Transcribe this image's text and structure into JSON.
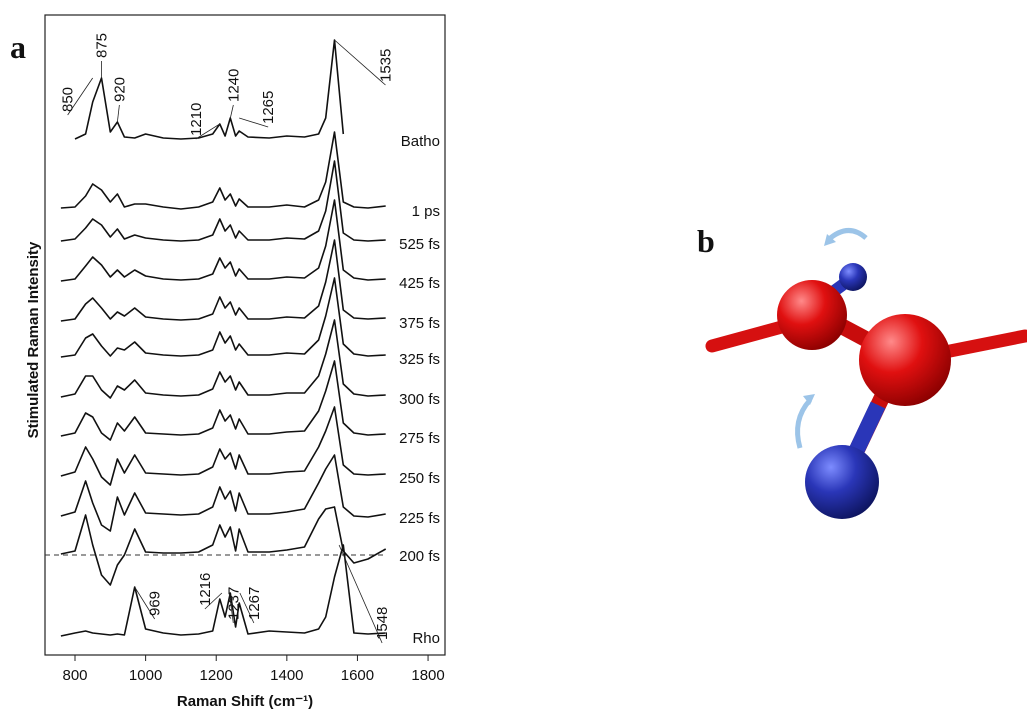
{
  "chart_data": {
    "type": "line",
    "panel_label": "a",
    "xlabel": "Raman Shift (cm⁻¹)",
    "ylabel": "Stimulated Raman Intensity",
    "xlim": [
      715,
      1848
    ],
    "xticks": [
      800,
      1000,
      1200,
      1400,
      1600,
      1800
    ],
    "color": "#111111",
    "x": [
      760,
      800,
      830,
      850,
      875,
      900,
      920,
      940,
      969,
      1000,
      1050,
      1100,
      1150,
      1190,
      1210,
      1225,
      1240,
      1255,
      1265,
      1290,
      1350,
      1400,
      1450,
      1490,
      1510,
      1535,
      1560,
      1590,
      1630,
      1680
    ],
    "series": [
      {
        "name": "Batho",
        "values": [
          null,
          1,
          6,
          38,
          62,
          8,
          18,
          3,
          2,
          6,
          2,
          1,
          2,
          6,
          16,
          4,
          22,
          4,
          9,
          3,
          2,
          4,
          3,
          6,
          22,
          100,
          6,
          null,
          null,
          null
        ],
        "peak_labels": [
          850,
          875,
          920,
          1210,
          1240,
          1265,
          1535
        ]
      },
      {
        "name": "1 ps",
        "values": [
          2,
          3,
          14,
          26,
          20,
          8,
          16,
          3,
          6,
          6,
          3,
          1,
          3,
          8,
          22,
          10,
          16,
          4,
          11,
          3,
          3,
          5,
          3,
          10,
          28,
          78,
          8,
          3,
          2,
          4
        ]
      },
      {
        "name": "525 fs",
        "values": [
          2,
          4,
          15,
          24,
          18,
          6,
          14,
          4,
          8,
          5,
          3,
          2,
          3,
          8,
          24,
          12,
          18,
          5,
          12,
          3,
          3,
          5,
          4,
          12,
          32,
          82,
          10,
          3,
          2,
          3
        ]
      },
      {
        "name": "425 fs",
        "values": [
          1,
          3,
          16,
          25,
          17,
          5,
          12,
          5,
          12,
          6,
          3,
          2,
          3,
          8,
          24,
          14,
          20,
          6,
          13,
          3,
          3,
          5,
          4,
          14,
          36,
          82,
          12,
          4,
          2,
          3
        ]
      },
      {
        "name": "375 fs",
        "values": [
          1,
          3,
          18,
          24,
          14,
          3,
          10,
          6,
          14,
          5,
          3,
          2,
          3,
          8,
          25,
          14,
          20,
          7,
          14,
          3,
          3,
          5,
          4,
          16,
          40,
          82,
          12,
          4,
          3,
          4
        ]
      },
      {
        "name": "325 fs",
        "values": [
          1,
          3,
          20,
          24,
          12,
          2,
          10,
          8,
          16,
          5,
          3,
          2,
          3,
          8,
          26,
          15,
          22,
          8,
          14,
          3,
          3,
          5,
          4,
          18,
          42,
          80,
          14,
          4,
          2,
          3
        ]
      },
      {
        "name": "300 fs",
        "values": [
          1,
          4,
          22,
          22,
          8,
          0,
          12,
          8,
          18,
          5,
          3,
          2,
          3,
          9,
          26,
          16,
          22,
          8,
          16,
          3,
          3,
          5,
          5,
          22,
          44,
          78,
          14,
          4,
          2,
          3
        ]
      },
      {
        "name": "275 fs",
        "values": [
          1,
          4,
          24,
          20,
          4,
          -3,
          14,
          6,
          20,
          4,
          3,
          2,
          3,
          9,
          27,
          16,
          22,
          8,
          18,
          3,
          3,
          5,
          6,
          26,
          46,
          76,
          14,
          4,
          2,
          3
        ]
      },
      {
        "name": "250 fs",
        "values": [
          1,
          5,
          30,
          18,
          0,
          -8,
          18,
          4,
          22,
          4,
          3,
          2,
          3,
          10,
          28,
          18,
          24,
          8,
          22,
          3,
          3,
          5,
          6,
          30,
          46,
          70,
          12,
          3,
          2,
          3
        ]
      },
      {
        "name": "225 fs",
        "values": [
          1,
          5,
          36,
          14,
          -8,
          -14,
          20,
          2,
          24,
          4,
          3,
          2,
          3,
          10,
          30,
          18,
          26,
          6,
          24,
          3,
          3,
          5,
          8,
          34,
          48,
          62,
          10,
          1,
          0,
          3
        ]
      },
      {
        "name": "200 fs",
        "values": [
          1,
          4,
          40,
          10,
          -20,
          -30,
          -10,
          0,
          26,
          3,
          2,
          2,
          3,
          10,
          30,
          18,
          28,
          4,
          26,
          3,
          3,
          5,
          8,
          36,
          46,
          48,
          4,
          -8,
          -4,
          6
        ]
      },
      {
        "name": "Rho",
        "values": [
          1,
          4,
          6,
          4,
          3,
          2,
          3,
          2,
          50,
          8,
          4,
          2,
          3,
          6,
          38,
          20,
          44,
          10,
          34,
          3,
          6,
          5,
          4,
          8,
          20,
          60,
          92,
          4,
          3,
          4
        ],
        "peak_labels": [
          969,
          1216,
          1237,
          1267,
          1548
        ]
      }
    ]
  },
  "figure_b": {
    "panel_label": "b"
  }
}
